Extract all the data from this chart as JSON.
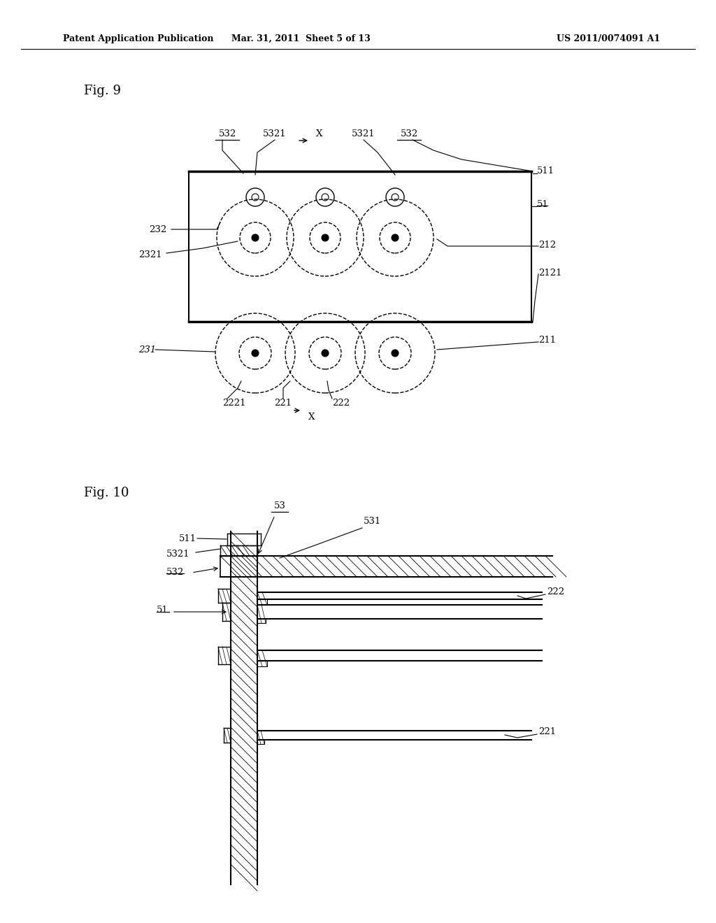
{
  "bg_color": "#ffffff",
  "header_left": "Patent Application Publication",
  "header_mid": "Mar. 31, 2011  Sheet 5 of 13",
  "header_right": "US 2011/0074091 A1",
  "fig9_label": "Fig. 9",
  "fig10_label": "Fig. 10",
  "line_color": "#000000"
}
